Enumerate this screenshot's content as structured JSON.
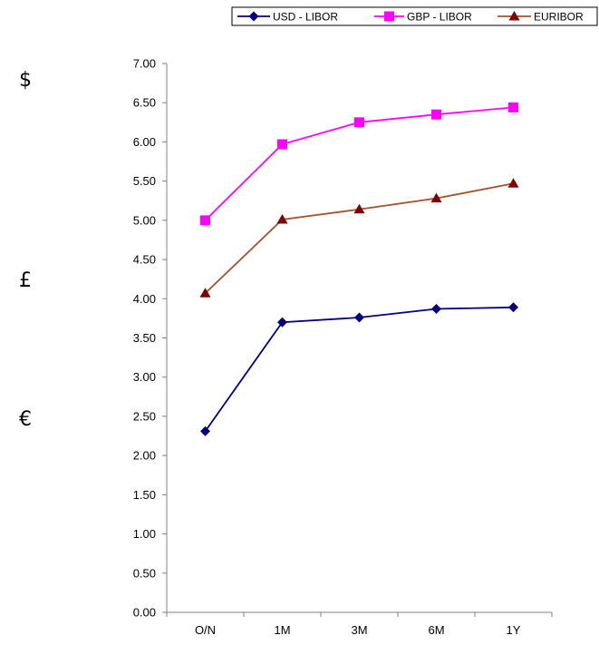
{
  "chart_data": {
    "type": "line",
    "title": "",
    "xlabel": "",
    "ylabel": "",
    "categories": [
      "O/N",
      "1M",
      "3M",
      "6M",
      "1Y"
    ],
    "ylim": [
      0,
      7
    ],
    "ytick_step": 0.5,
    "ytick_labels": [
      "0.00",
      "0.50",
      "1.00",
      "1.50",
      "2.00",
      "2.50",
      "3.00",
      "3.50",
      "4.00",
      "4.50",
      "5.00",
      "5.50",
      "6.00",
      "6.50",
      "7.00"
    ],
    "grid": false,
    "legend_position": "top-right",
    "series": [
      {
        "name": "USD - LIBOR",
        "values": [
          2.31,
          3.7,
          3.76,
          3.87,
          3.89
        ],
        "color": "#000080",
        "marker": "diamond"
      },
      {
        "name": "GBP - LIBOR",
        "values": [
          5.0,
          5.97,
          6.25,
          6.35,
          6.44
        ],
        "color": "#ff00ff",
        "marker": "square"
      },
      {
        "name": "EURIBOR",
        "values": [
          4.07,
          5.01,
          5.14,
          5.28,
          5.47
        ],
        "color": "#800000",
        "line_color": "#a0522d",
        "marker": "triangle"
      }
    ]
  },
  "annotations": [
    {
      "symbol": "$",
      "series": "USD - LIBOR"
    },
    {
      "symbol": "£",
      "series": "GBP - LIBOR"
    },
    {
      "symbol": "€",
      "series": "EURIBOR"
    }
  ]
}
